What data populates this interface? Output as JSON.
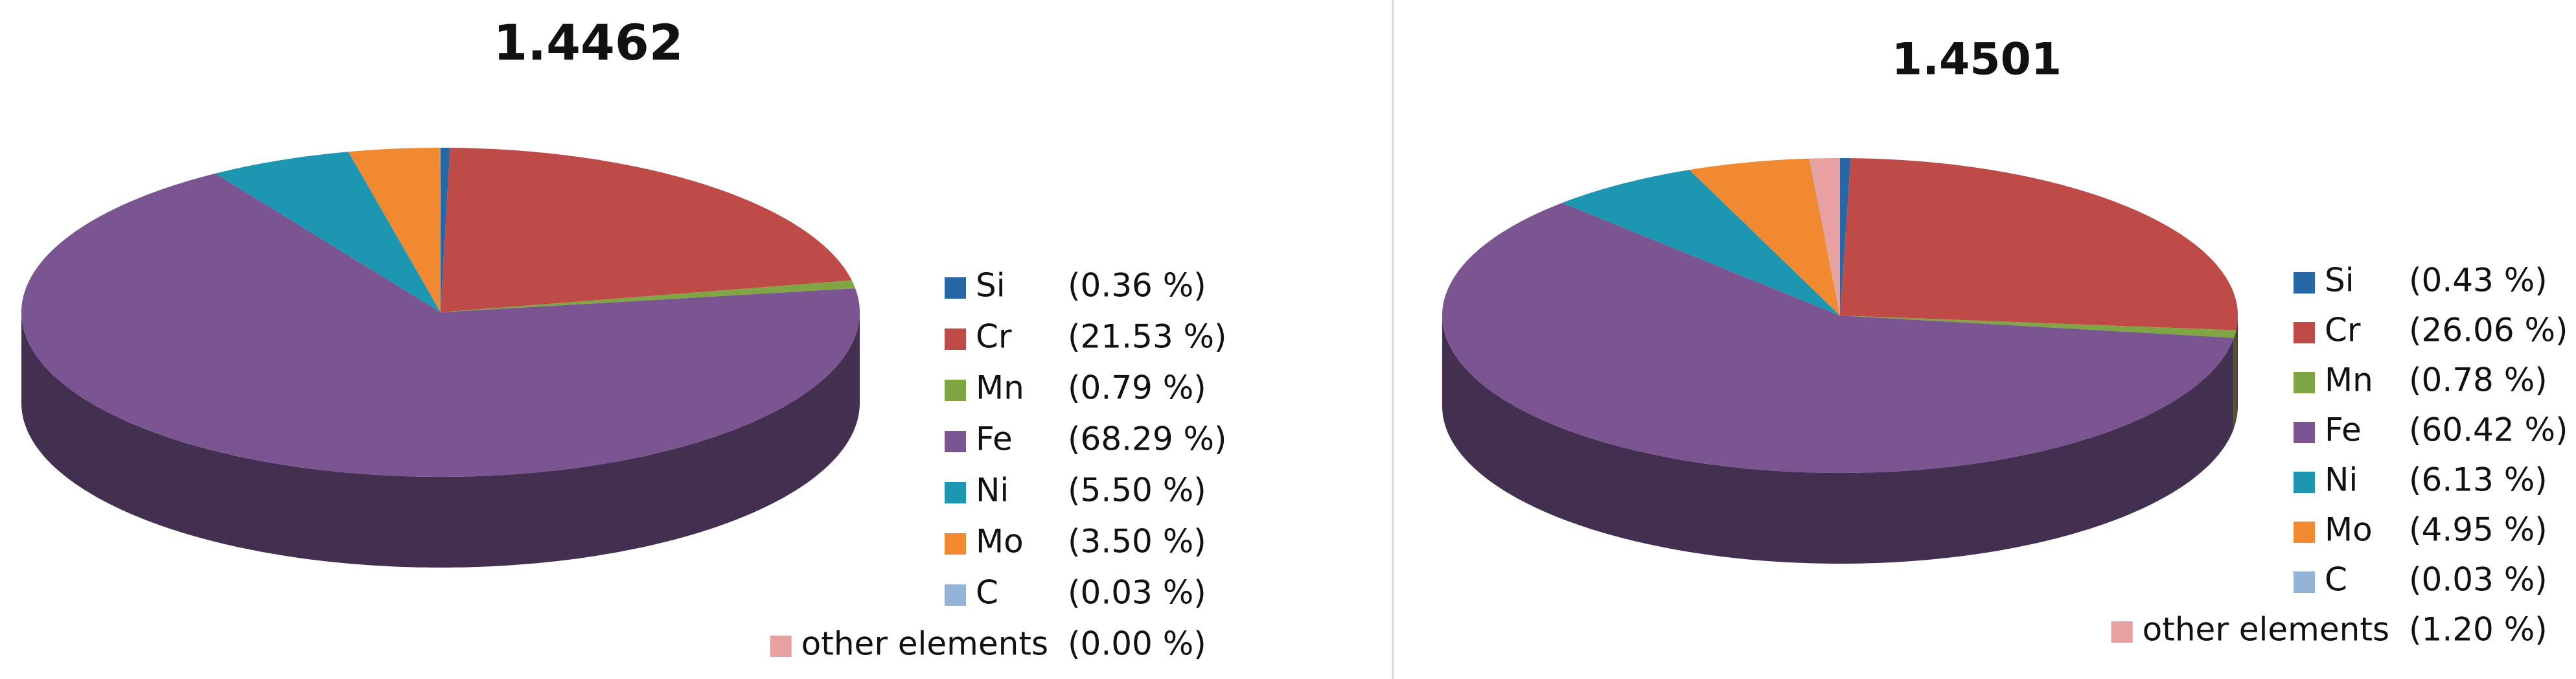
{
  "chart_data": [
    {
      "type": "pie",
      "title": "1.4462",
      "categories": [
        "Si",
        "Cr",
        "Mn",
        "Fe",
        "Ni",
        "Mo",
        "C",
        "other elements"
      ],
      "values": [
        0.36,
        21.53,
        0.79,
        68.29,
        5.5,
        3.5,
        0.03,
        0
      ],
      "value_labels": [
        "(0.36 %)",
        "(21.53 %)",
        "(0.79 %)",
        "(68.29 %)",
        "(5.50 %)",
        "(3.50 %)",
        "(0.03 %)",
        "(0.00 %)"
      ],
      "colors": [
        "#2767a6",
        "#be4b48",
        "#7fa545",
        "#7a5591",
        "#1d97b1",
        "#f0892f",
        "#95b3d7",
        "#e6a1a0"
      ]
    },
    {
      "type": "pie",
      "title": "1.4501",
      "categories": [
        "Si",
        "Cr",
        "Mn",
        "Fe",
        "Ni",
        "Mo",
        "C",
        "other elements"
      ],
      "values": [
        0.43,
        26.06,
        0.78,
        60.42,
        6.13,
        4.95,
        0.03,
        1.2
      ],
      "value_labels": [
        "(0.43 %)",
        "(26.06 %)",
        "(0.78 %)",
        "(60.42 %)",
        "(6.13 %)",
        "(4.95 %)",
        "(0.03 %)",
        "(1.20 %)"
      ],
      "colors": [
        "#2767a6",
        "#be4b48",
        "#7fa545",
        "#7a5591",
        "#1d97b1",
        "#f0892f",
        "#95b3d7",
        "#e6a1a0"
      ]
    }
  ]
}
